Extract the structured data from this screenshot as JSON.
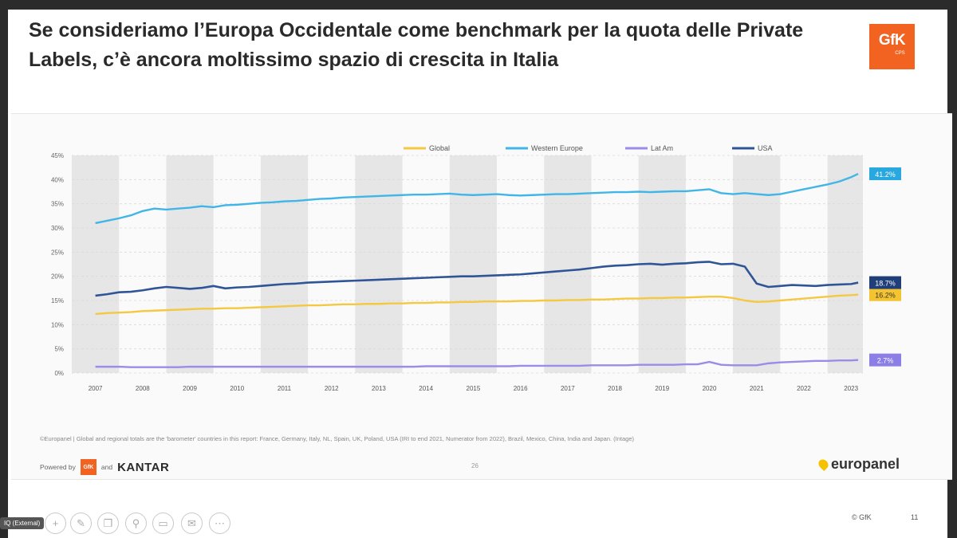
{
  "slide": {
    "title": "Se consideriamo l’Europa Occidentale come benchmark per la quota delle Private Labels, c’è ancora moltissimo spazio di crescita in Italia",
    "logo_main": "GfK",
    "logo_sub": "CPS",
    "footnote": "©Europanel | Global and regional totals are the 'barometer' countries in this report: France, Germany, Italy, NL, Spain, UK, Poland, USA (IRI to end 2021, Numerator from 2022), Brazil, Mexico, China, India and Japan. (Intage)",
    "powered_by": "Powered by",
    "gfk_small": "GfK",
    "and": "and",
    "kantar": "KANTAR",
    "page_number": "26",
    "europanel": "europanel"
  },
  "footer": {
    "internal_tag": "IQ (External)",
    "copyright": "© GfK",
    "slide_number": "11"
  },
  "colors": {
    "global": "#f5c842",
    "western_europe": "#41b6e6",
    "lat_am": "#9b8ce8",
    "usa": "#2f5597",
    "badge_global": "#f4c430",
    "badge_we": "#29a8e0",
    "badge_latam": "#8b7fe6",
    "badge_usa": "#203f7a",
    "band": "#e6e6e6",
    "grid": "#d9d9d9"
  },
  "chart_data": {
    "type": "line",
    "title": "",
    "xlabel": "",
    "ylabel": "",
    "ylim": [
      0,
      45
    ],
    "yticks": [
      "0%",
      "5%",
      "10%",
      "15%",
      "20%",
      "25%",
      "30%",
      "35%",
      "40%",
      "45%"
    ],
    "categories": [
      "2007",
      "2008",
      "2009",
      "2010",
      "2011",
      "2012",
      "2013",
      "2014",
      "2015",
      "2016",
      "2017",
      "2018",
      "2019",
      "2020",
      "2021",
      "2022",
      "2023"
    ],
    "x": [
      2007.0,
      2007.25,
      2007.5,
      2007.75,
      2008.0,
      2008.25,
      2008.5,
      2008.75,
      2009.0,
      2009.25,
      2009.5,
      2009.75,
      2010.0,
      2010.25,
      2010.5,
      2010.75,
      2011.0,
      2011.25,
      2011.5,
      2011.75,
      2012.0,
      2012.25,
      2012.5,
      2012.75,
      2013.0,
      2013.25,
      2013.5,
      2013.75,
      2014.0,
      2014.25,
      2014.5,
      2014.75,
      2015.0,
      2015.25,
      2015.5,
      2015.75,
      2016.0,
      2016.25,
      2016.5,
      2016.75,
      2017.0,
      2017.25,
      2017.5,
      2017.75,
      2018.0,
      2018.25,
      2018.5,
      2018.75,
      2019.0,
      2019.25,
      2019.5,
      2019.75,
      2020.0,
      2020.25,
      2020.5,
      2020.75,
      2021.0,
      2021.25,
      2021.5,
      2021.75,
      2022.0,
      2022.25,
      2022.5,
      2022.75,
      2023.0,
      2023.15
    ],
    "series": [
      {
        "name": "Global",
        "color": "#f5c842",
        "end_label": "16.2%",
        "values": [
          12.2,
          12.4,
          12.5,
          12.6,
          12.8,
          12.9,
          13.0,
          13.1,
          13.2,
          13.3,
          13.3,
          13.4,
          13.4,
          13.5,
          13.6,
          13.7,
          13.8,
          13.9,
          14.0,
          14.0,
          14.1,
          14.2,
          14.2,
          14.3,
          14.3,
          14.4,
          14.4,
          14.5,
          14.5,
          14.6,
          14.6,
          14.7,
          14.7,
          14.8,
          14.8,
          14.8,
          14.9,
          14.9,
          15.0,
          15.0,
          15.1,
          15.1,
          15.2,
          15.2,
          15.3,
          15.4,
          15.4,
          15.5,
          15.5,
          15.6,
          15.6,
          15.7,
          15.8,
          15.8,
          15.5,
          15.0,
          14.7,
          14.8,
          15.0,
          15.2,
          15.4,
          15.6,
          15.8,
          16.0,
          16.1,
          16.2
        ]
      },
      {
        "name": "Western Europe",
        "color": "#41b6e6",
        "end_label": "41.2%",
        "values": [
          31.0,
          31.5,
          32.0,
          32.6,
          33.5,
          34.0,
          33.8,
          34.0,
          34.2,
          34.5,
          34.3,
          34.7,
          34.8,
          35.0,
          35.2,
          35.3,
          35.5,
          35.6,
          35.8,
          36.0,
          36.1,
          36.3,
          36.4,
          36.5,
          36.6,
          36.7,
          36.8,
          36.9,
          36.9,
          37.0,
          37.1,
          36.9,
          36.8,
          36.9,
          37.0,
          36.8,
          36.7,
          36.8,
          36.9,
          37.0,
          37.0,
          37.1,
          37.2,
          37.3,
          37.4,
          37.4,
          37.5,
          37.4,
          37.5,
          37.6,
          37.6,
          37.8,
          38.0,
          37.2,
          37.0,
          37.2,
          37.0,
          36.8,
          37.0,
          37.5,
          38.0,
          38.5,
          39.0,
          39.6,
          40.5,
          41.2
        ]
      },
      {
        "name": "Lat Am",
        "color": "#9b8ce8",
        "end_label": "2.7%",
        "values": [
          1.3,
          1.3,
          1.3,
          1.2,
          1.2,
          1.2,
          1.2,
          1.2,
          1.3,
          1.3,
          1.3,
          1.3,
          1.3,
          1.3,
          1.3,
          1.3,
          1.3,
          1.3,
          1.3,
          1.3,
          1.3,
          1.3,
          1.3,
          1.3,
          1.3,
          1.3,
          1.3,
          1.3,
          1.4,
          1.4,
          1.4,
          1.4,
          1.4,
          1.4,
          1.4,
          1.4,
          1.5,
          1.5,
          1.5,
          1.5,
          1.5,
          1.5,
          1.6,
          1.6,
          1.6,
          1.6,
          1.7,
          1.7,
          1.7,
          1.7,
          1.8,
          1.8,
          2.3,
          1.7,
          1.6,
          1.6,
          1.6,
          2.0,
          2.2,
          2.3,
          2.4,
          2.5,
          2.5,
          2.6,
          2.6,
          2.7
        ]
      },
      {
        "name": "USA",
        "color": "#2f5597",
        "end_label": "18.7%",
        "values": [
          16.0,
          16.3,
          16.7,
          16.8,
          17.1,
          17.5,
          17.8,
          17.6,
          17.4,
          17.6,
          18.0,
          17.5,
          17.7,
          17.8,
          18.0,
          18.2,
          18.4,
          18.5,
          18.7,
          18.8,
          18.9,
          19.0,
          19.1,
          19.2,
          19.3,
          19.4,
          19.5,
          19.6,
          19.7,
          19.8,
          19.9,
          20.0,
          20.0,
          20.1,
          20.2,
          20.3,
          20.4,
          20.6,
          20.8,
          21.0,
          21.2,
          21.4,
          21.7,
          22.0,
          22.2,
          22.3,
          22.5,
          22.6,
          22.4,
          22.6,
          22.7,
          22.9,
          23.0,
          22.5,
          22.6,
          22.0,
          18.5,
          17.8,
          18.0,
          18.2,
          18.1,
          18.0,
          18.2,
          18.3,
          18.4,
          18.7
        ]
      }
    ],
    "legend": "top",
    "grid": true
  }
}
